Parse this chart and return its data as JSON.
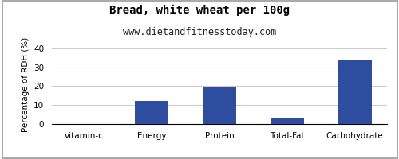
{
  "title": "Bread, white wheat per 100g",
  "subtitle": "www.dietandfitnesstoday.com",
  "categories": [
    "vitamin-c",
    "Energy",
    "Protein",
    "Total-Fat",
    "Carbohydrate"
  ],
  "values": [
    0,
    12.3,
    19.3,
    3.4,
    34.0
  ],
  "bar_color": "#2e4d9e",
  "ylabel": "Percentage of RDH (%)",
  "ylim": [
    0,
    42
  ],
  "yticks": [
    0,
    10,
    20,
    30,
    40
  ],
  "background_color": "#ffffff",
  "title_fontsize": 10,
  "subtitle_fontsize": 8.5,
  "ylabel_fontsize": 7.5,
  "tick_fontsize": 7.5,
  "grid_color": "#cccccc",
  "border_color": "#aaaaaa"
}
